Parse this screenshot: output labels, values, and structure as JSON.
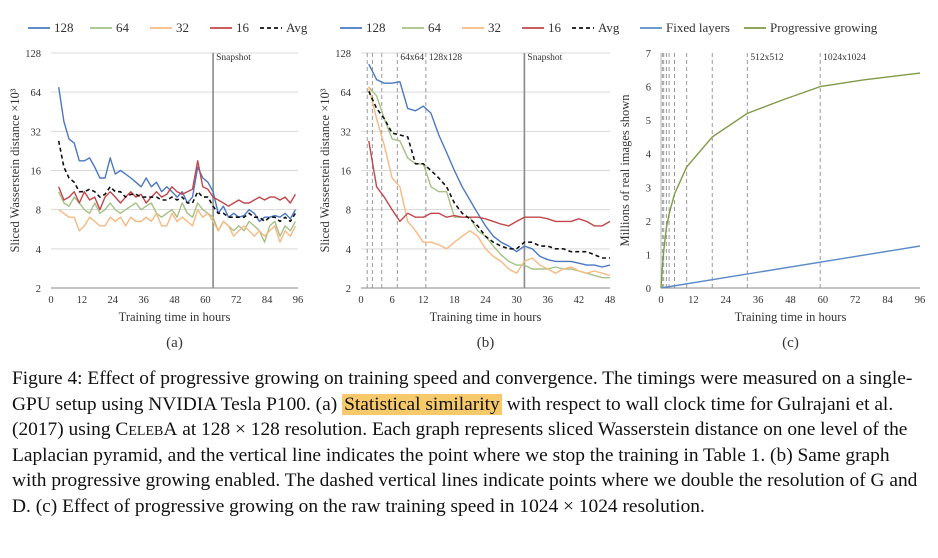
{
  "chart_data": [
    {
      "type": "line",
      "panel_label": "(a)",
      "xlabel": "Training time in hours",
      "ylabel": "Sliced Wasserstein distance ×10³",
      "y_scale": "log2",
      "ylim": [
        2,
        128
      ],
      "xlim": [
        0,
        96
      ],
      "x_ticks": [
        0,
        12,
        24,
        36,
        48,
        60,
        72,
        84,
        96
      ],
      "y_ticks": [
        2,
        4,
        8,
        16,
        32,
        64,
        128
      ],
      "legend": [
        "128",
        "64",
        "32",
        "16",
        "Avg"
      ],
      "legend_position": "top",
      "grid": "horizontal",
      "vertical_lines": [
        {
          "x": 63,
          "label": "Snapshot",
          "style": "solid"
        }
      ],
      "x": [
        3,
        5,
        7,
        9,
        11,
        13,
        15,
        17,
        19,
        21,
        23,
        25,
        27,
        29,
        31,
        33,
        35,
        37,
        39,
        41,
        43,
        45,
        47,
        49,
        51,
        53,
        55,
        57,
        59,
        61,
        63,
        65,
        67,
        69,
        71,
        73,
        75,
        77,
        79,
        81,
        83,
        85,
        87,
        89,
        91,
        93,
        95
      ],
      "series": [
        {
          "name": "128",
          "color": "#4a78c2",
          "values": [
            70,
            38,
            28,
            26,
            19,
            19,
            20,
            17,
            14,
            14,
            20,
            15,
            16,
            15,
            14,
            13,
            12,
            14,
            12,
            13,
            11,
            12,
            11,
            10,
            11,
            9,
            10,
            17,
            14,
            13,
            11,
            7.5,
            8.5,
            7,
            7.5,
            7,
            7.2,
            8,
            7.5,
            6.5,
            7,
            7,
            7.2,
            7,
            7.5,
            6.8,
            8
          ]
        },
        {
          "name": "64",
          "color": "#a5c184",
          "values": [
            11,
            9,
            8.5,
            10,
            9,
            8,
            7.5,
            9,
            7.5,
            8,
            9,
            8,
            7.5,
            8,
            8.5,
            9,
            8,
            8.5,
            9,
            7.5,
            7,
            7.5,
            8,
            7,
            9,
            7.5,
            7,
            9,
            8,
            7.5,
            7,
            5.5,
            6.5,
            6,
            5.5,
            6,
            5.5,
            6.5,
            6,
            5.5,
            4.5,
            6,
            6.5,
            5,
            6,
            5.5,
            6.5
          ]
        },
        {
          "name": "32",
          "color": "#f7b982",
          "values": [
            8,
            7.5,
            7,
            7,
            5.5,
            6,
            7,
            6.5,
            6,
            6,
            7,
            6.5,
            7,
            6,
            7,
            6.5,
            6.5,
            7,
            6.5,
            7.5,
            6,
            6,
            7.5,
            6.5,
            7,
            6.5,
            6,
            8,
            7,
            7.5,
            6.5,
            5.5,
            6.5,
            6,
            5,
            5.5,
            6,
            5.5,
            5,
            5.5,
            5,
            5.5,
            6,
            4.5,
            5.5,
            5,
            6
          ]
        },
        {
          "name": "16",
          "color": "#c2474a",
          "values": [
            12,
            9.5,
            10,
            11,
            9,
            11,
            9.5,
            10,
            8,
            10,
            11,
            10,
            9,
            10,
            11,
            10,
            10.5,
            9,
            10,
            11,
            10,
            10.5,
            12,
            11,
            10.5,
            11,
            11.5,
            19,
            12,
            11.5,
            10,
            9.5,
            9,
            8.5,
            9,
            9.5,
            9,
            9,
            9.5,
            10,
            9.5,
            10,
            10,
            9.5,
            10,
            9,
            10.5
          ]
        },
        {
          "name": "Avg",
          "color": "#111111",
          "dash": "4,3",
          "values": [
            27,
            17,
            14,
            13,
            11,
            11,
            11.5,
            11,
            10,
            10.5,
            12,
            11,
            11,
            10,
            10.5,
            10.5,
            10,
            10,
            10,
            10,
            9.5,
            9.5,
            10,
            9.5,
            10,
            9,
            9,
            11,
            10,
            10,
            8.5,
            7.5,
            7.5,
            7,
            7,
            7,
            7,
            7.5,
            7,
            7,
            6.5,
            7,
            7,
            6.5,
            7,
            6.5,
            7.5
          ]
        }
      ]
    },
    {
      "type": "line",
      "panel_label": "(b)",
      "xlabel": "Training time in hours",
      "ylabel": "Sliced Wasserstein distance ×10³",
      "y_scale": "log2",
      "ylim": [
        2,
        128
      ],
      "xlim": [
        0,
        48
      ],
      "x_ticks": [
        0,
        6,
        12,
        18,
        24,
        30,
        36,
        42,
        48
      ],
      "y_ticks": [
        2,
        4,
        8,
        16,
        32,
        64,
        128
      ],
      "legend": [
        "128",
        "64",
        "32",
        "16",
        "Avg"
      ],
      "legend_position": "top",
      "grid": "horizontal",
      "vertical_lines": [
        {
          "x": 1.2,
          "style": "dashed"
        },
        {
          "x": 2.2,
          "style": "dashed"
        },
        {
          "x": 4,
          "style": "dashed"
        },
        {
          "x": 7,
          "label": "64x64",
          "style": "dashed"
        },
        {
          "x": 12.5,
          "label": "128x128",
          "style": "dashed"
        },
        {
          "x": 31.5,
          "label": "Snapshot",
          "style": "solid"
        }
      ],
      "x": [
        1.5,
        3,
        4.5,
        6,
        7.5,
        9,
        10.5,
        12,
        13.5,
        15,
        16.5,
        18,
        19.5,
        21,
        22.5,
        24,
        25.5,
        27,
        28.5,
        30,
        31.5,
        33,
        34.5,
        36,
        37.5,
        39,
        40.5,
        42,
        43.5,
        45,
        46.5,
        48
      ],
      "series": [
        {
          "name": "128",
          "color": "#4a78c2",
          "values": [
            105,
            80,
            75,
            75,
            77,
            48,
            46,
            50,
            44,
            30,
            22,
            16,
            12,
            9.5,
            7.5,
            6,
            5,
            4.5,
            4.2,
            3.8,
            4.2,
            4,
            3.5,
            3.3,
            3.2,
            3.2,
            3.2,
            3.1,
            3,
            3,
            2.9,
            3
          ]
        },
        {
          "name": "64",
          "color": "#a5c184",
          "values": [
            70,
            60,
            40,
            28,
            27,
            20,
            18,
            18,
            12,
            11,
            11,
            7,
            7,
            7,
            5.5,
            5,
            4.2,
            3.6,
            3.2,
            3,
            3,
            2.8,
            2.8,
            2.8,
            2.9,
            2.8,
            2.8,
            2.7,
            2.6,
            2.5,
            2.4,
            2.4
          ]
        },
        {
          "name": "32",
          "color": "#f7b982",
          "values": [
            70,
            40,
            25,
            14,
            12,
            6.5,
            5.5,
            4.5,
            4.5,
            4.3,
            4,
            4.5,
            5,
            5.5,
            5,
            4,
            3.5,
            3.2,
            2.8,
            2.6,
            3.2,
            3.4,
            3,
            2.8,
            2.6,
            2.8,
            2.9,
            2.7,
            2.6,
            2.7,
            2.6,
            2.5
          ]
        },
        {
          "name": "16",
          "color": "#c2474a",
          "values": [
            27,
            12,
            10,
            8,
            6.5,
            7.5,
            7,
            7,
            7.5,
            7.5,
            7,
            7.2,
            7,
            7,
            7,
            6.8,
            6.5,
            6.2,
            6,
            6.5,
            7,
            7,
            7,
            6.8,
            6.5,
            6.5,
            6.5,
            6.8,
            6.5,
            6,
            6,
            6.5
          ]
        },
        {
          "name": "Avg",
          "color": "#111111",
          "dash": "4,3",
          "values": [
            65,
            48,
            40,
            31,
            30,
            29,
            18,
            18,
            16,
            14,
            12,
            9,
            7.5,
            6.8,
            6,
            5,
            4.5,
            4.2,
            4,
            4,
            4.5,
            4.5,
            4.2,
            4.2,
            4,
            4,
            3.8,
            3.8,
            3.8,
            3.6,
            3.4,
            3.4
          ]
        }
      ]
    },
    {
      "type": "line",
      "panel_label": "(c)",
      "xlabel": "Training time in hours",
      "ylabel": "Millions of real images shown",
      "y_scale": "linear",
      "ylim": [
        0,
        7
      ],
      "xlim": [
        0,
        96
      ],
      "x_ticks": [
        0,
        12,
        24,
        36,
        48,
        60,
        72,
        84,
        96
      ],
      "y_ticks": [
        0,
        1,
        2,
        3,
        4,
        5,
        6,
        7
      ],
      "legend": [
        "Fixed layers",
        "Progressive growing"
      ],
      "legend_position": "top",
      "grid": "none",
      "vertical_lines": [
        {
          "x": 0.5,
          "style": "dashed"
        },
        {
          "x": 1,
          "style": "dashed"
        },
        {
          "x": 2,
          "style": "dashed"
        },
        {
          "x": 3,
          "style": "dashed"
        },
        {
          "x": 5,
          "style": "dashed"
        },
        {
          "x": 9.5,
          "style": "dashed"
        },
        {
          "x": 19,
          "style": "dashed"
        },
        {
          "x": 32,
          "label": "512x512",
          "style": "dashed"
        },
        {
          "x": 59,
          "label": "1024x1024",
          "style": "dashed"
        }
      ],
      "series": [
        {
          "name": "Fixed layers",
          "color": "#5a8bc9",
          "x": [
            0,
            96
          ],
          "values": [
            0,
            1.25
          ]
        },
        {
          "name": "Progressive growing",
          "color": "#7f9a45",
          "x": [
            0,
            0.5,
            1,
            2,
            3,
            5,
            9.5,
            19,
            32,
            45,
            59,
            75,
            96
          ],
          "values": [
            0,
            0.6,
            1.1,
            1.8,
            2.2,
            2.8,
            3.6,
            4.5,
            5.2,
            5.6,
            6.0,
            6.2,
            6.4
          ]
        }
      ]
    }
  ],
  "caption": {
    "p1": "Figure 4:  Effect of progressive growing on training speed and convergence.  The timings were measured on a single-GPU setup using NVIDIA Tesla P100. (a) ",
    "highlight": "Statistical similarity",
    "p2": " with respect to wall clock time for Gulrajani et al. (2017) using ",
    "celeba": "CelebA",
    "p3": " at 128 × 128 resolution. Each graph represents sliced Wasserstein distance on one level of the Laplacian pyramid, and the vertical line indicates the point where we stop the training in Table 1. (b) Same graph with progressive growing enabled. The dashed vertical lines indicate points where we double the resolution of G and D. (c) Effect of progressive growing on the raw training speed in 1024 × 1024 resolution."
  }
}
